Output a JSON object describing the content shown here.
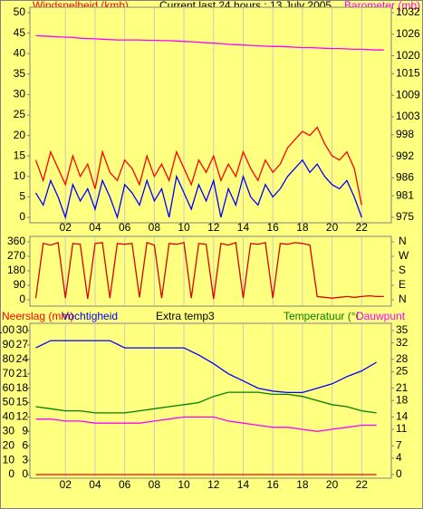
{
  "chart_data": [
    {
      "type": "line",
      "title": "Current last 24 hours : 13 July 2005",
      "ylabel": "Windsnelheid (kmh)",
      "y2label": "Barometer (mb)",
      "x": [
        0,
        0.5,
        1,
        1.5,
        2,
        2.5,
        3,
        3.5,
        4,
        4.5,
        5,
        5.5,
        6,
        6.5,
        7,
        7.5,
        8,
        8.5,
        9,
        9.5,
        10,
        10.5,
        11,
        11.5,
        12,
        12.5,
        13,
        13.5,
        14,
        14.5,
        15,
        15.5,
        16,
        16.5,
        17,
        17.5,
        18,
        18.5,
        19,
        19.5,
        20,
        20.5,
        21,
        21.5,
        22,
        22.5,
        23,
        23.5
      ],
      "series": [
        {
          "color": "#ff0000",
          "values": [
            14,
            9,
            16,
            12,
            8,
            15,
            10,
            13,
            7,
            16,
            11,
            9,
            14,
            12,
            8,
            15,
            10,
            13,
            9,
            16,
            12,
            8,
            14,
            11,
            15,
            9,
            13,
            10,
            16,
            12,
            9,
            14,
            11,
            13,
            17,
            19,
            21,
            20,
            22,
            18,
            15,
            14,
            16,
            12,
            3,
            null,
            null,
            null
          ]
        },
        {
          "color": "#0000ff",
          "values": [
            6,
            3,
            9,
            5,
            0,
            8,
            4,
            7,
            2,
            9,
            5,
            0,
            8,
            6,
            3,
            9,
            4,
            7,
            0,
            10,
            6,
            2,
            8,
            4,
            9,
            0,
            7,
            3,
            10,
            5,
            3,
            8,
            5,
            7,
            10,
            12,
            14,
            11,
            13,
            10,
            8,
            7,
            9,
            5,
            0,
            null,
            null,
            null
          ]
        },
        {
          "color": "#ff00ff",
          "axis": "y2",
          "values": [
            1025.6,
            1025.5,
            1025.4,
            1025.3,
            1025.2,
            1025.1,
            1024.9,
            1024.8,
            1024.7,
            1024.6,
            1024.5,
            1024.4,
            1024.4,
            1024.4,
            1024.4,
            1024.3,
            1024.3,
            1024.2,
            1024.2,
            1024.1,
            1024.0,
            1023.9,
            1023.8,
            1023.6,
            1023.5,
            1023.4,
            1023.2,
            1023.1,
            1023.0,
            1022.9,
            1022.8,
            1022.7,
            1022.6,
            1022.6,
            1022.5,
            1022.4,
            1022.3,
            1022.3,
            1022.2,
            1022.1,
            1022.0,
            1022.0,
            1021.9,
            1021.8,
            1021.8,
            1021.7,
            1021.6,
            1021.6
          ]
        }
      ],
      "xlim": [
        -0.4,
        24
      ],
      "xticks": [
        {
          "value": 2,
          "label": "02"
        },
        {
          "value": 4,
          "label": "04"
        },
        {
          "value": 6,
          "label": "06"
        },
        {
          "value": 8,
          "label": "08"
        },
        {
          "value": 10,
          "label": "10"
        },
        {
          "value": 12,
          "label": "12"
        },
        {
          "value": 14,
          "label": "14"
        },
        {
          "value": 16,
          "label": "16"
        },
        {
          "value": 18,
          "label": "18"
        },
        {
          "value": 20,
          "label": "20"
        },
        {
          "value": 22,
          "label": "22"
        }
      ],
      "ylim": [
        0,
        50
      ],
      "yticks": [
        0,
        5,
        10,
        15,
        20,
        25,
        30,
        35,
        40,
        45,
        50
      ],
      "y2lim": [
        975,
        1032
      ],
      "y2ticks": [
        975,
        981,
        986,
        992,
        998,
        1003,
        1009,
        1015,
        1020,
        1026,
        1032
      ],
      "grid": true
    },
    {
      "type": "line",
      "x": [
        0,
        0.5,
        1,
        1.5,
        2,
        2.5,
        3,
        3.5,
        4,
        4.5,
        5,
        5.5,
        6,
        6.5,
        7,
        7.5,
        8,
        8.5,
        9,
        9.5,
        10,
        10.5,
        11,
        11.5,
        12,
        12.5,
        13,
        13.5,
        14,
        14.5,
        15,
        15.5,
        16,
        16.5,
        17,
        17.5,
        18,
        18.5,
        19,
        19.5,
        20,
        20.5,
        21,
        21.5,
        22,
        22.5,
        23,
        23.5
      ],
      "series": [
        {
          "color": "#dd0000",
          "values": [
            10,
            350,
            340,
            355,
            10,
            350,
            345,
            5,
            350,
            355,
            10,
            350,
            345,
            350,
            15,
            355,
            340,
            10,
            350,
            345,
            355,
            10,
            350,
            345,
            5,
            350,
            340,
            355,
            10,
            350,
            345,
            355,
            10,
            350,
            345,
            355,
            350,
            340,
            20,
            15,
            10,
            15,
            20,
            15,
            20,
            25,
            20,
            20
          ]
        }
      ],
      "xlim": [
        -0.4,
        24
      ],
      "xticks": [
        {
          "value": 2,
          "label": "02"
        },
        {
          "value": 4,
          "label": "04"
        },
        {
          "value": 6,
          "label": "06"
        },
        {
          "value": 8,
          "label": "08"
        },
        {
          "value": 10,
          "label": "10"
        },
        {
          "value": 12,
          "label": "12"
        },
        {
          "value": 14,
          "label": "14"
        },
        {
          "value": 16,
          "label": "16"
        },
        {
          "value": 18,
          "label": "18"
        },
        {
          "value": 20,
          "label": "20"
        },
        {
          "value": 22,
          "label": "22"
        }
      ],
      "ylim": [
        0,
        360
      ],
      "yticks": [
        0,
        90,
        180,
        270,
        360
      ],
      "y2lim": [
        0,
        360
      ],
      "y2ticks": [
        {
          "value": 0,
          "label": "N"
        },
        {
          "value": 90,
          "label": "E"
        },
        {
          "value": 180,
          "label": "S"
        },
        {
          "value": 270,
          "label": "W"
        },
        {
          "value": 360,
          "label": "N"
        }
      ],
      "grid": true
    },
    {
      "type": "line",
      "title": "Extra temp3",
      "x": [
        0,
        1,
        2,
        3,
        4,
        5,
        6,
        7,
        8,
        9,
        10,
        11,
        12,
        13,
        14,
        15,
        16,
        17,
        18,
        19,
        20,
        21,
        22,
        23
      ],
      "series": [
        {
          "name": "Neerslag (mm)",
          "color": "#ff0000",
          "values": [
            0,
            0,
            0,
            0,
            0,
            0,
            0,
            0,
            0,
            0,
            0,
            0,
            0,
            0,
            0,
            0,
            0,
            0,
            0,
            0,
            0,
            0,
            0,
            0
          ]
        },
        {
          "name": "Vochtigheid",
          "color": "#0000ff",
          "axis": "y3",
          "values": [
            88,
            93,
            93,
            93,
            93,
            93,
            88,
            88,
            88,
            88,
            88,
            83,
            77,
            70,
            65,
            60,
            58,
            57,
            57,
            60,
            63,
            68,
            72,
            78
          ]
        },
        {
          "name": "Temperatuur (°C",
          "color": "#008000",
          "axis": "y2",
          "values": [
            16.5,
            16,
            15.5,
            15.5,
            15,
            15,
            15,
            15.5,
            16,
            16.5,
            17,
            17.5,
            19,
            20,
            20,
            20,
            19.5,
            19.5,
            19,
            18,
            17,
            16.5,
            15.5,
            15
          ]
        },
        {
          "name": "Dauwpunt",
          "color": "#ff00ff",
          "axis": "y2",
          "values": [
            13.5,
            13.5,
            13,
            13,
            12.5,
            12.5,
            12.5,
            12.5,
            13,
            13.5,
            14,
            14,
            14,
            13,
            12.5,
            12,
            11.5,
            11.5,
            11,
            10.5,
            11,
            11.5,
            12,
            12
          ]
        }
      ],
      "xlim": [
        -0.4,
        24
      ],
      "xticks": [
        {
          "value": 2,
          "label": "02"
        },
        {
          "value": 4,
          "label": "04"
        },
        {
          "value": 6,
          "label": "06"
        },
        {
          "value": 8,
          "label": "08"
        },
        {
          "value": 10,
          "label": "10"
        },
        {
          "value": 12,
          "label": "12"
        },
        {
          "value": 14,
          "label": "14"
        },
        {
          "value": 16,
          "label": "16"
        },
        {
          "value": 18,
          "label": "18"
        },
        {
          "value": 20,
          "label": "20"
        },
        {
          "value": 22,
          "label": "22"
        }
      ],
      "ylim": [
        0,
        30
      ],
      "yticks": [
        0,
        3,
        6,
        9,
        12,
        15,
        18,
        21,
        24,
        27,
        30
      ],
      "y3lim": [
        0,
        100
      ],
      "y3ticks": [
        0,
        10,
        20,
        30,
        40,
        50,
        60,
        70,
        80,
        90,
        100
      ],
      "y2lim": [
        0,
        35
      ],
      "y2ticks": [
        0,
        4,
        7,
        11,
        14,
        18,
        21,
        25,
        28,
        32,
        35
      ],
      "grid": true
    }
  ]
}
